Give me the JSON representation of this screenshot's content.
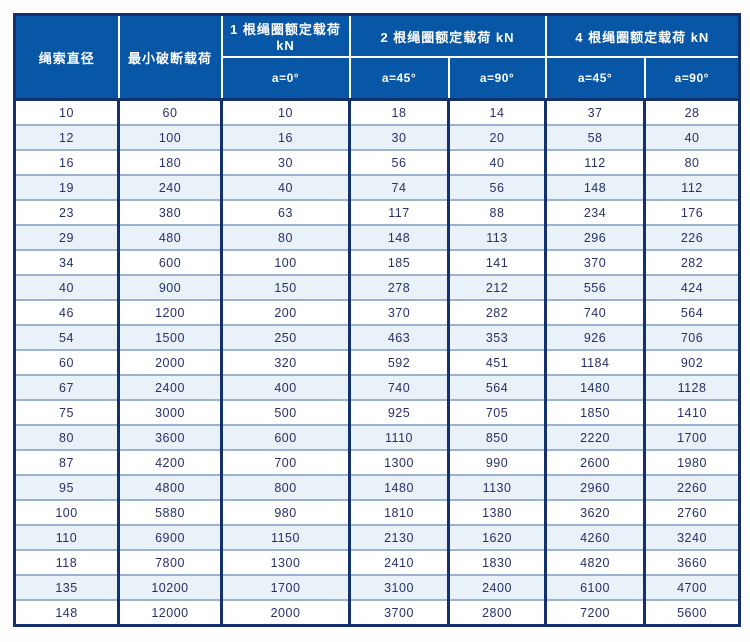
{
  "table": {
    "header": {
      "col_rope_diameter": "绳索直径",
      "col_min_breaking_load": "最小破断载荷",
      "group_1_leg": "1 根绳圈额定载荷 kN",
      "group_2_leg": "2 根绳圈额定载荷 kN",
      "group_4_leg": "4 根绳圈额定载荷 kN",
      "sub_a0": "a=0°",
      "sub_a45": "a=45°",
      "sub_a90": "a=90°"
    },
    "rows": [
      [
        10,
        60,
        10,
        18,
        14,
        37,
        28
      ],
      [
        12,
        100,
        16,
        30,
        20,
        58,
        40
      ],
      [
        16,
        180,
        30,
        56,
        40,
        112,
        80
      ],
      [
        19,
        240,
        40,
        74,
        56,
        148,
        112
      ],
      [
        23,
        380,
        63,
        117,
        88,
        234,
        176
      ],
      [
        29,
        480,
        80,
        148,
        113,
        296,
        226
      ],
      [
        34,
        600,
        100,
        185,
        141,
        370,
        282
      ],
      [
        40,
        900,
        150,
        278,
        212,
        556,
        424
      ],
      [
        46,
        1200,
        200,
        370,
        282,
        740,
        564
      ],
      [
        54,
        1500,
        250,
        463,
        353,
        926,
        706
      ],
      [
        60,
        2000,
        320,
        592,
        451,
        1184,
        902
      ],
      [
        67,
        2400,
        400,
        740,
        564,
        1480,
        1128
      ],
      [
        75,
        3000,
        500,
        925,
        705,
        1850,
        1410
      ],
      [
        80,
        3600,
        600,
        1110,
        850,
        2220,
        1700
      ],
      [
        87,
        4200,
        700,
        1300,
        990,
        2600,
        1980
      ],
      [
        95,
        4800,
        800,
        1480,
        1130,
        2960,
        2260
      ],
      [
        100,
        5880,
        980,
        1810,
        1380,
        3620,
        2760
      ],
      [
        110,
        6900,
        1150,
        2130,
        1620,
        4260,
        3240
      ],
      [
        118,
        7800,
        1300,
        2410,
        1830,
        4820,
        3660
      ],
      [
        135,
        10200,
        1700,
        3100,
        2400,
        6100,
        4700
      ],
      [
        148,
        12000,
        2000,
        3700,
        2800,
        7200,
        5600
      ]
    ]
  },
  "colors": {
    "header_bg": "#0857a7",
    "border_dark": "#14316e",
    "row_separator": "#9cb3d0",
    "alt_row_bg": "#e9f1f9",
    "cell_text": "#283069",
    "header_text": "#ffffff"
  }
}
